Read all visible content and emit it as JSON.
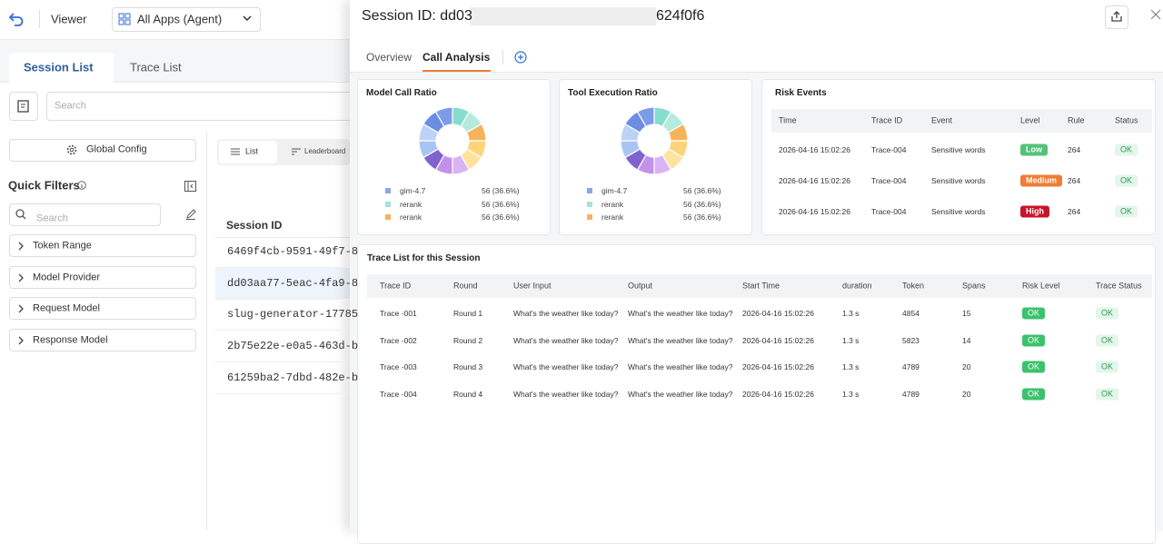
{
  "top_bar": {
    "title": "Viewer",
    "app_select": "All Apps (Agent)"
  },
  "left_tabs": [
    "Session List",
    "Trace List"
  ],
  "search_placeholder": "Search",
  "global_config": "Global Config",
  "view_tabs": [
    "List",
    "Leaderboard"
  ],
  "quick_filters": {
    "title": "Quick Filters",
    "search_placeholder": "Search",
    "items": [
      "Token Range",
      "Model Provider",
      "Request Model",
      "Response Model"
    ]
  },
  "session_table": {
    "header": "Session ID",
    "rows": [
      "6469f4cb-9591-49f7-8",
      "dd03aa77-5eac-4fa9-8",
      "slug-generator-17785",
      "2b75e22e-e0a5-463d-b",
      "61259ba2-7dbd-482e-b"
    ]
  },
  "drawer": {
    "title_prefix": "Session ID: dd03",
    "title_suffix": "624f0f6",
    "tabs": [
      "Overview",
      "Call Analysis"
    ],
    "model_call_ratio": {
      "title": "Model Call Ratio",
      "legend": [
        {
          "name": "gim-4.7",
          "value": "56 (36.6%)"
        },
        {
          "name": "rerank",
          "value": "56 (36.6%)"
        },
        {
          "name": "rerank",
          "value": "56 (36.6%)"
        }
      ]
    },
    "tool_execution_ratio": {
      "title": "Tool Execution Ratio",
      "legend": [
        {
          "name": "gim-4.7",
          "value": "56 (36.6%)"
        },
        {
          "name": "rerank",
          "value": "56 (36.6%)"
        },
        {
          "name": "rerank",
          "value": "56 (36.6%)"
        }
      ]
    },
    "risk_events": {
      "title": "Risk Events",
      "columns": [
        "Time",
        "Trace ID",
        "Event",
        "Level",
        "Rule",
        "Status"
      ],
      "rows": [
        [
          "2026-04-16 15:02:26",
          "Trace-004",
          "Sensitive words",
          "Low",
          "264",
          "OK"
        ],
        [
          "2026-04-16 15:02:26",
          "Trace-004",
          "Sensitive words",
          "Medium",
          "264",
          "OK"
        ],
        [
          "2026-04-16 15:02:26",
          "Trace-004",
          "Sensitive words",
          "High",
          "264",
          "OK"
        ]
      ]
    },
    "trace_list": {
      "title": "Trace List for this Session",
      "columns": [
        "Trace ID",
        "Round",
        "User Input",
        "Output",
        "Start Time",
        "duration",
        "Token",
        "Spans",
        "Risk Level",
        "Trace Status"
      ],
      "rows": [
        [
          "Trace -001",
          "Round 1",
          "What's the weather like today?",
          "What's the weather like today?",
          "2026-04-16 15:02:26",
          "1.3 s",
          "4854",
          "15",
          "OK",
          "OK"
        ],
        [
          "Trace -002",
          "Round 2",
          "What's the weather like today?",
          "What's the weather like today?",
          "2026-04-16 15:02:26",
          "1.3 s",
          "5823",
          "14",
          "OK",
          "OK"
        ],
        [
          "Trace -003",
          "Round 3",
          "What's the weather like today?",
          "What's the weather like today?",
          "2026-04-16 15:02:26",
          "1.3 s",
          "4789",
          "20",
          "OK",
          "OK"
        ],
        [
          "Trace -004",
          "Round 4",
          "What's the weather like today?",
          "What's the weather like today?",
          "2026-04-16 15:02:26",
          "1.3 s",
          "4789",
          "20",
          "OK",
          "OK"
        ]
      ]
    }
  }
}
